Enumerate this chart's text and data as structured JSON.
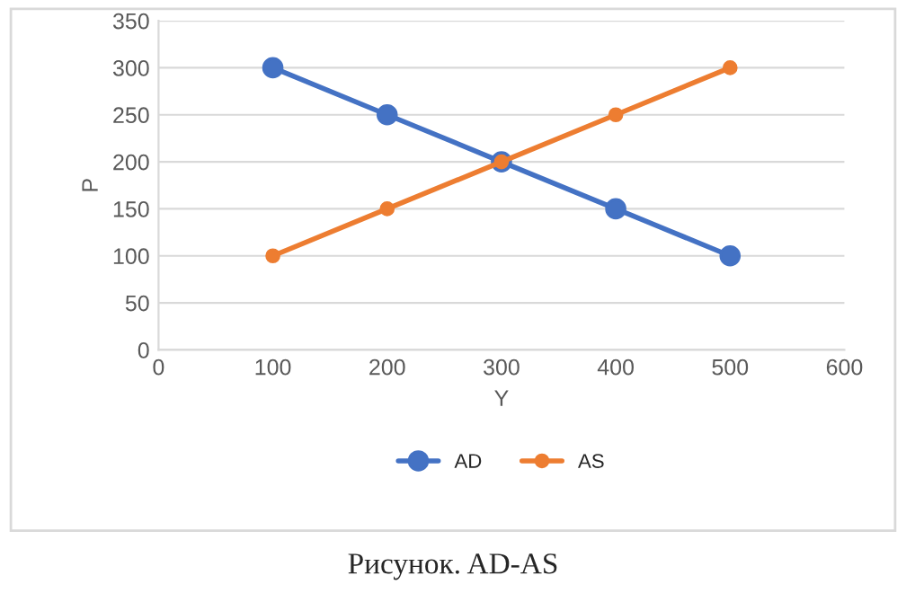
{
  "chart_data": {
    "type": "line",
    "x": [
      100,
      200,
      300,
      400,
      500
    ],
    "series": [
      {
        "name": "AD",
        "color": "#4472c4",
        "values": [
          300,
          250,
          200,
          150,
          100
        ]
      },
      {
        "name": "AS",
        "color": "#ed7d31",
        "values": [
          100,
          150,
          200,
          250,
          300
        ]
      }
    ],
    "xlabel": "Y",
    "ylabel": "P",
    "xlim": [
      0,
      600
    ],
    "xticks": [
      0,
      100,
      200,
      300,
      400,
      500,
      600
    ],
    "ylim": [
      0,
      350
    ],
    "yticks": [
      0,
      50,
      100,
      150,
      200,
      250,
      300,
      350
    ],
    "grid": "y",
    "legend": "bottom",
    "marker": "circle",
    "line_style": "solid",
    "annotations": [
      "Рисунок. AD-AS"
    ]
  }
}
